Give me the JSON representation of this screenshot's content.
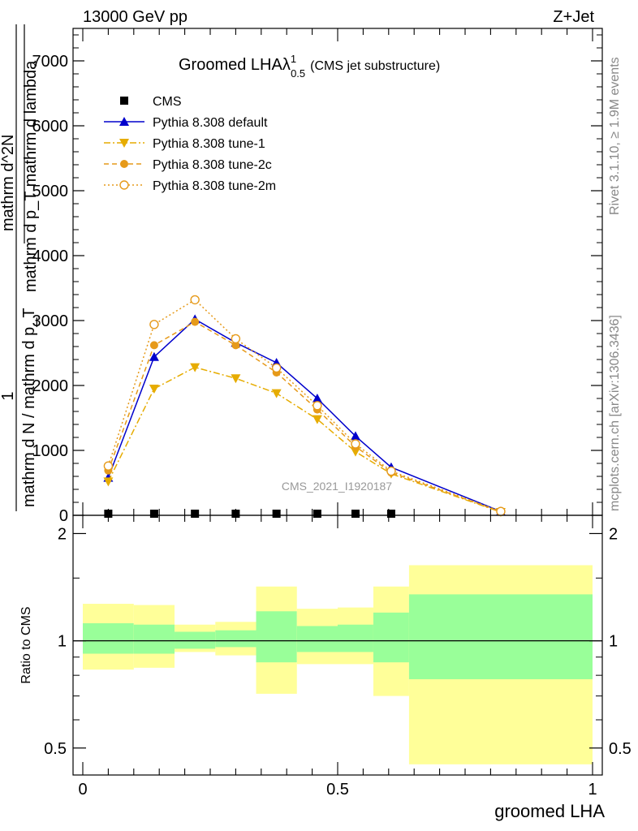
{
  "header": {
    "left": "13000 GeV pp",
    "right": "Z+Jet"
  },
  "side_labels": {
    "rivet": "Rivet 3.1.10, ≥ 1.9M events",
    "mcplots": "mcplots.cern.ch [arXiv:1306.3436]"
  },
  "chart_data": [
    {
      "type": "line",
      "panel": "main",
      "title": {
        "main": "Groomed LHAλ",
        "sup": "1",
        "sub": "0.5",
        "suffix": "(CMS jet substructure)"
      },
      "watermark": "CMS_2021_I1920187",
      "ylabel": {
        "numerator": "1",
        "denominator": "mathrm d N / mathrm d p_T",
        "right_num": "mathrm d^2N",
        "right_den": "mathrm d p_T mathrm d lambda"
      },
      "ylim": [
        0,
        7500
      ],
      "yticks": [
        0,
        1000,
        2000,
        3000,
        4000,
        5000,
        6000,
        7000
      ],
      "ytick_labels": [
        "0",
        "1000",
        "2000",
        "3000",
        "4000",
        "5000",
        "6000",
        "7000"
      ],
      "xlim": [
        0,
        1
      ],
      "legend_position": "top-left",
      "series": [
        {
          "name": "CMS",
          "color": "#000000",
          "marker": "square",
          "line": "none",
          "x": [
            0.05,
            0.14,
            0.22,
            0.3,
            0.38,
            0.46,
            0.535,
            0.605
          ],
          "y": [
            0,
            0,
            0,
            0,
            0,
            0,
            0,
            0
          ]
        },
        {
          "name": "Pythia 8.308 default",
          "color": "#0000cc",
          "marker": "triangle-up",
          "line": "solid",
          "x": [
            0.05,
            0.14,
            0.22,
            0.3,
            0.38,
            0.46,
            0.535,
            0.605,
            0.82
          ],
          "y": [
            580,
            2440,
            3020,
            2660,
            2350,
            1800,
            1220,
            740,
            60
          ]
        },
        {
          "name": "Pythia 8.308 tune-1",
          "color": "#e6ac00",
          "marker": "triangle-down",
          "line": "dashdot",
          "x": [
            0.05,
            0.14,
            0.22,
            0.3,
            0.38,
            0.46,
            0.535,
            0.605,
            0.82
          ],
          "y": [
            520,
            1950,
            2280,
            2110,
            1880,
            1480,
            980,
            640,
            50
          ]
        },
        {
          "name": "Pythia 8.308 tune-2c",
          "color": "#e69a1a",
          "marker": "circle",
          "line": "dashed",
          "x": [
            0.05,
            0.14,
            0.22,
            0.3,
            0.38,
            0.46,
            0.535,
            0.605,
            0.82
          ],
          "y": [
            690,
            2620,
            2980,
            2620,
            2200,
            1630,
            1060,
            660,
            55
          ]
        },
        {
          "name": "Pythia 8.308 tune-2m",
          "color": "#e69a1a",
          "marker": "circle-open",
          "line": "dotted",
          "x": [
            0.05,
            0.14,
            0.22,
            0.3,
            0.38,
            0.46,
            0.535,
            0.605,
            0.82
          ],
          "y": [
            760,
            2940,
            3320,
            2720,
            2270,
            1690,
            1100,
            680,
            60
          ]
        }
      ]
    },
    {
      "type": "area",
      "panel": "ratio",
      "ylabel": "Ratio to CMS",
      "xlabel": "groomed LHA",
      "xlim": [
        0,
        1
      ],
      "xticks": [
        0,
        0.5,
        1
      ],
      "xtick_labels": [
        "0",
        "0.5",
        "1"
      ],
      "ylim": [
        0.42,
        2.25
      ],
      "yticks": [
        0.5,
        1,
        2
      ],
      "ytick_labels": [
        "0.5",
        "1",
        "2"
      ],
      "reference_line": 1,
      "bins": [
        {
          "x0": 0.0,
          "x1": 0.1,
          "stat": [
            0.92,
            1.12
          ],
          "total": [
            0.83,
            1.27
          ]
        },
        {
          "x0": 0.1,
          "x1": 0.18,
          "stat": [
            0.92,
            1.11
          ],
          "total": [
            0.84,
            1.26
          ]
        },
        {
          "x0": 0.18,
          "x1": 0.26,
          "stat": [
            0.95,
            1.06
          ],
          "total": [
            0.93,
            1.11
          ]
        },
        {
          "x0": 0.26,
          "x1": 0.34,
          "stat": [
            0.96,
            1.07
          ],
          "total": [
            0.91,
            1.13
          ]
        },
        {
          "x0": 0.34,
          "x1": 0.42,
          "stat": [
            0.87,
            1.21
          ],
          "total": [
            0.71,
            1.42
          ]
        },
        {
          "x0": 0.42,
          "x1": 0.5,
          "stat": [
            0.93,
            1.1
          ],
          "total": [
            0.86,
            1.23
          ]
        },
        {
          "x0": 0.5,
          "x1": 0.57,
          "stat": [
            0.93,
            1.11
          ],
          "total": [
            0.86,
            1.24
          ]
        },
        {
          "x0": 0.57,
          "x1": 0.64,
          "stat": [
            0.87,
            1.2
          ],
          "total": [
            0.7,
            1.42
          ]
        },
        {
          "x0": 0.64,
          "x1": 1.0,
          "stat": [
            0.78,
            1.35
          ],
          "total": [
            0.45,
            1.63
          ]
        }
      ],
      "colors": {
        "stat": "#99ff99",
        "total": "#ffff99"
      }
    }
  ]
}
